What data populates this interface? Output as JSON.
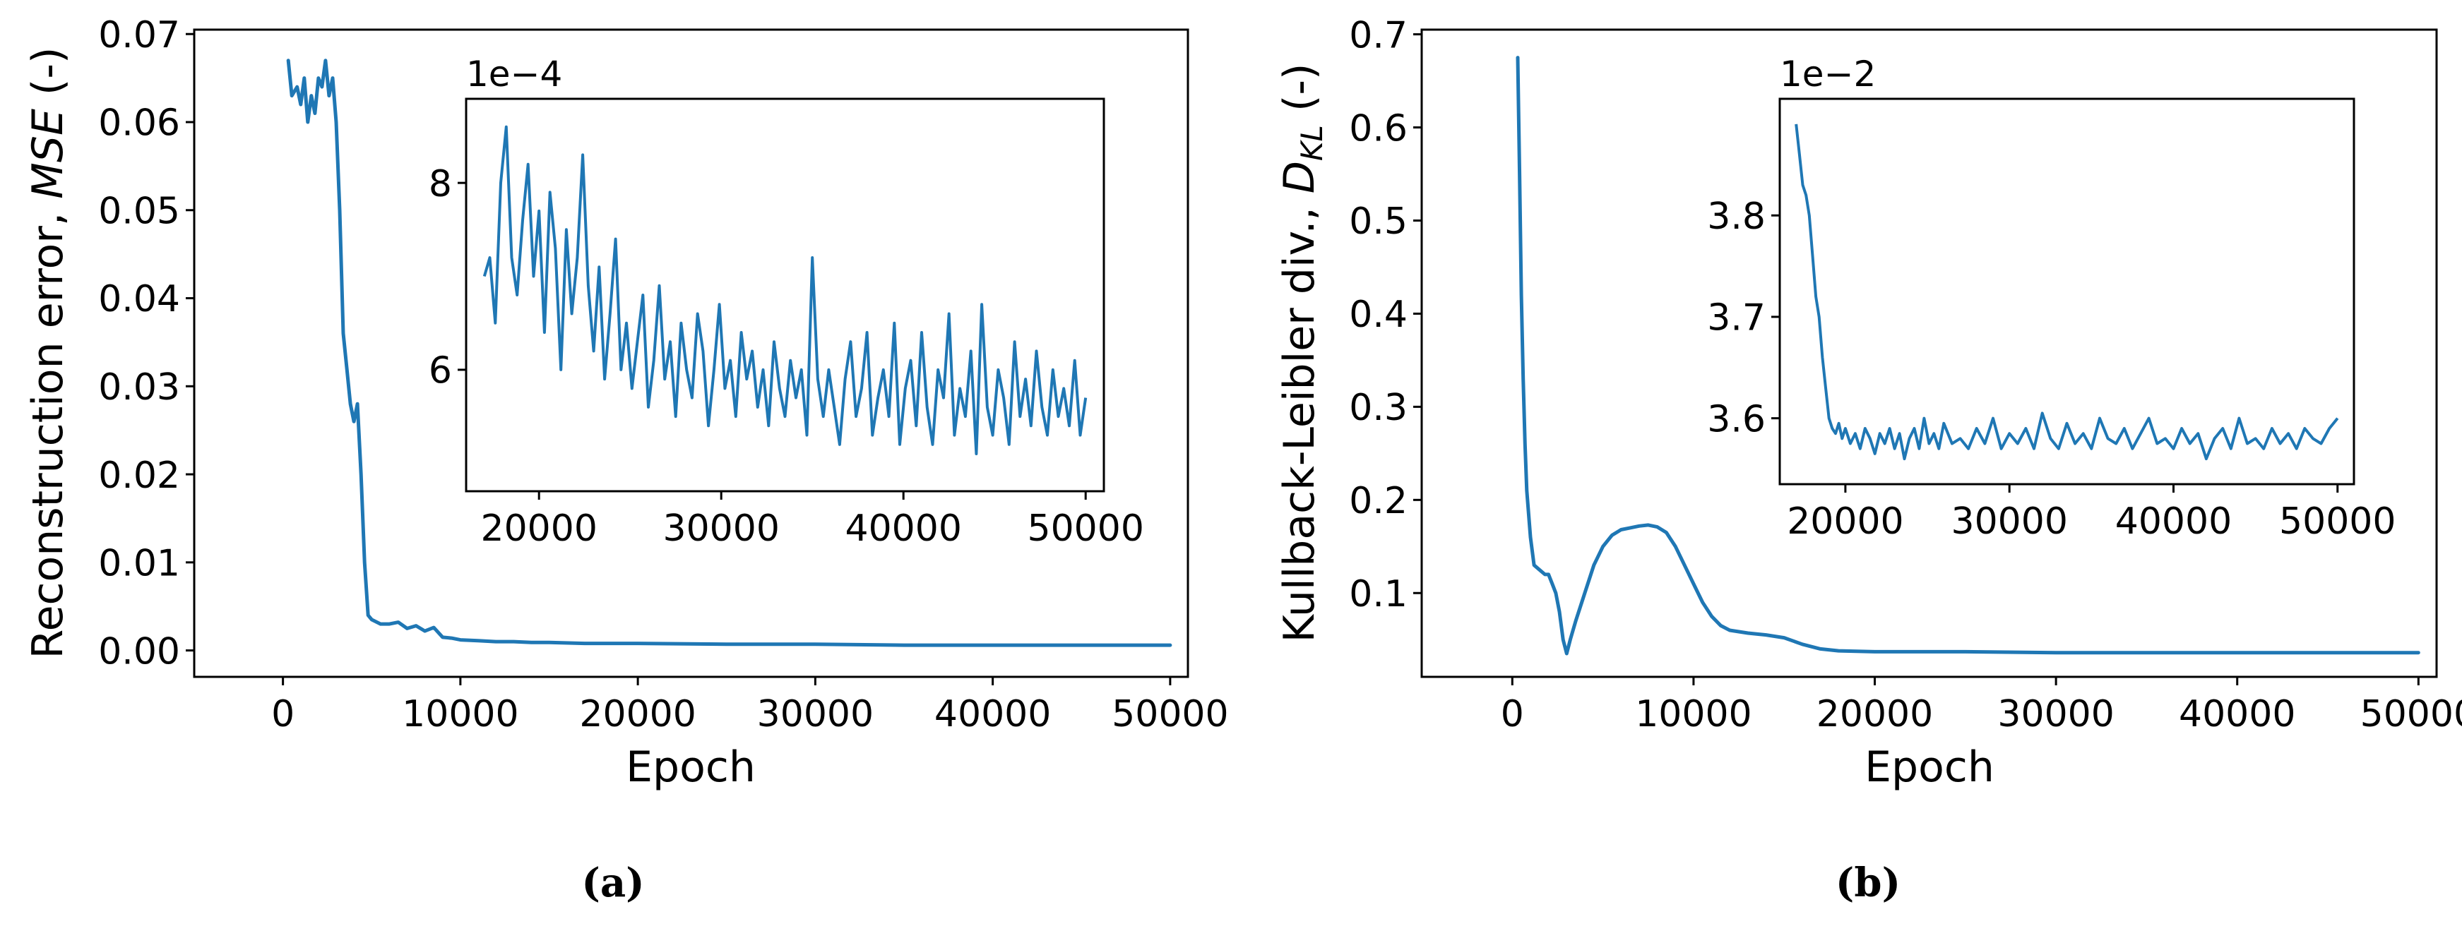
{
  "chart_data": [
    {
      "id": "a",
      "type": "line",
      "caption": "(a)",
      "xlabel": "Epoch",
      "ylabel_text": "Reconstruction error, ",
      "ylabel_italic": "MSE",
      "ylabel_suffix": " (-)",
      "xlim": [
        -5000,
        51000
      ],
      "ylim": [
        -0.003,
        0.0705
      ],
      "xticks": [
        0,
        10000,
        20000,
        30000,
        40000,
        50000
      ],
      "xtick_labels": [
        "0",
        "10000",
        "20000",
        "30000",
        "40000",
        "50000"
      ],
      "yticks": [
        0.0,
        0.01,
        0.02,
        0.03,
        0.04,
        0.05,
        0.06,
        0.07
      ],
      "ytick_labels": [
        "0.00",
        "0.01",
        "0.02",
        "0.03",
        "0.04",
        "0.05",
        "0.06",
        "0.07"
      ],
      "series": [
        {
          "color": "#1f77b4",
          "x": [
            300,
            500,
            800,
            1000,
            1200,
            1400,
            1600,
            1800,
            2000,
            2200,
            2400,
            2600,
            2800,
            3000,
            3200,
            3400,
            3600,
            3800,
            4000,
            4200,
            4400,
            4600,
            4800,
            5000,
            5500,
            6000,
            6500,
            7000,
            7500,
            8000,
            8500,
            9000,
            9500,
            10000,
            11000,
            12000,
            13000,
            14000,
            15000,
            17000,
            20000,
            25000,
            30000,
            35000,
            40000,
            45000,
            50000
          ],
          "y": [
            0.067,
            0.063,
            0.064,
            0.062,
            0.065,
            0.06,
            0.063,
            0.061,
            0.065,
            0.064,
            0.067,
            0.063,
            0.065,
            0.06,
            0.05,
            0.036,
            0.032,
            0.028,
            0.026,
            0.028,
            0.02,
            0.01,
            0.004,
            0.0035,
            0.003,
            0.003,
            0.0032,
            0.0025,
            0.0028,
            0.0022,
            0.0026,
            0.0015,
            0.0014,
            0.0012,
            0.0011,
            0.001,
            0.001,
            0.0009,
            0.0009,
            0.0008,
            0.0008,
            0.0007,
            0.0007,
            0.0006,
            0.0006,
            0.0006,
            0.0006
          ]
        }
      ],
      "inset": {
        "multiplier": "1e−4",
        "xlim": [
          16000,
          51000
        ],
        "ylim": [
          4.7,
          8.9
        ],
        "xticks": [
          20000,
          30000,
          40000,
          50000
        ],
        "xtick_labels": [
          "20000",
          "30000",
          "40000",
          "50000"
        ],
        "yticks": [
          6,
          8
        ],
        "ytick_labels": [
          "6",
          "8"
        ],
        "x": [
          17000,
          17300,
          17600,
          17900,
          18200,
          18500,
          18800,
          19100,
          19400,
          19700,
          20000,
          20300,
          20600,
          20900,
          21200,
          21500,
          21800,
          22100,
          22400,
          22700,
          23000,
          23300,
          23600,
          23900,
          24200,
          24500,
          24800,
          25100,
          25400,
          25700,
          26000,
          26300,
          26600,
          26900,
          27200,
          27500,
          27800,
          28100,
          28400,
          28700,
          29000,
          29300,
          29600,
          29900,
          30200,
          30500,
          30800,
          31100,
          31400,
          31700,
          32000,
          32300,
          32600,
          32900,
          33200,
          33500,
          33800,
          34100,
          34400,
          34700,
          35000,
          35300,
          35600,
          35900,
          36200,
          36500,
          36800,
          37100,
          37400,
          37700,
          38000,
          38300,
          38600,
          38900,
          39200,
          39500,
          39800,
          40100,
          40400,
          40700,
          41000,
          41300,
          41600,
          41900,
          42200,
          42500,
          42800,
          43100,
          43400,
          43700,
          44000,
          44300,
          44600,
          44900,
          45200,
          45500,
          45800,
          46100,
          46400,
          46700,
          47000,
          47300,
          47600,
          47900,
          48200,
          48500,
          48800,
          49100,
          49400,
          49700,
          50000
        ],
        "y": [
          7.0,
          7.2,
          6.5,
          8.0,
          8.6,
          7.2,
          6.8,
          7.6,
          8.2,
          7.0,
          7.7,
          6.4,
          7.9,
          7.3,
          6.0,
          7.5,
          6.6,
          7.2,
          8.3,
          6.9,
          6.2,
          7.1,
          5.9,
          6.6,
          7.4,
          6.0,
          6.5,
          5.8,
          6.3,
          6.8,
          5.6,
          6.1,
          6.9,
          5.9,
          6.3,
          5.5,
          6.5,
          6.0,
          5.7,
          6.6,
          6.2,
          5.4,
          6.0,
          6.7,
          5.8,
          6.1,
          5.5,
          6.4,
          5.9,
          6.2,
          5.6,
          6.0,
          5.4,
          6.3,
          5.8,
          5.5,
          6.1,
          5.7,
          6.0,
          5.3,
          7.2,
          5.9,
          5.5,
          6.0,
          5.6,
          5.2,
          5.9,
          6.3,
          5.5,
          5.8,
          6.4,
          5.3,
          5.7,
          6.0,
          5.5,
          6.5,
          5.2,
          5.8,
          6.1,
          5.4,
          6.4,
          5.6,
          5.2,
          6.0,
          5.7,
          6.6,
          5.3,
          5.8,
          5.5,
          6.2,
          5.1,
          6.7,
          5.6,
          5.3,
          6.0,
          5.7,
          5.2,
          6.3,
          5.5,
          5.9,
          5.4,
          6.2,
          5.6,
          5.3,
          6.0,
          5.5,
          5.8,
          5.4,
          6.1,
          5.3,
          5.7
        ]
      }
    },
    {
      "id": "b",
      "type": "line",
      "caption": "(b)",
      "xlabel": "Epoch",
      "ylabel_text": "Kullback-Leibler div., ",
      "ylabel_italic": "D",
      "ylabel_sub": "KL",
      "ylabel_suffix": " (-)",
      "xlim": [
        -5000,
        51000
      ],
      "ylim": [
        0.01,
        0.705
      ],
      "xticks": [
        0,
        10000,
        20000,
        30000,
        40000,
        50000
      ],
      "xtick_labels": [
        "0",
        "10000",
        "20000",
        "30000",
        "40000",
        "50000"
      ],
      "yticks": [
        0.1,
        0.2,
        0.3,
        0.4,
        0.5,
        0.6,
        0.7
      ],
      "ytick_labels": [
        "0.1",
        "0.2",
        "0.3",
        "0.4",
        "0.5",
        "0.6",
        "0.7"
      ],
      "series": [
        {
          "color": "#1f77b4",
          "x": [
            300,
            400,
            500,
            600,
            700,
            800,
            1000,
            1200,
            1500,
            1800,
            2000,
            2200,
            2400,
            2600,
            2800,
            3000,
            3200,
            3500,
            4000,
            4500,
            5000,
            5500,
            6000,
            6500,
            7000,
            7500,
            8000,
            8500,
            9000,
            9500,
            10000,
            10500,
            11000,
            11500,
            12000,
            13000,
            14000,
            15000,
            16000,
            17000,
            18000,
            20000,
            25000,
            30000,
            35000,
            40000,
            45000,
            50000
          ],
          "y": [
            0.675,
            0.55,
            0.42,
            0.33,
            0.26,
            0.21,
            0.16,
            0.13,
            0.125,
            0.12,
            0.12,
            0.11,
            0.1,
            0.08,
            0.05,
            0.035,
            0.05,
            0.07,
            0.1,
            0.13,
            0.15,
            0.162,
            0.168,
            0.17,
            0.172,
            0.173,
            0.171,
            0.165,
            0.15,
            0.13,
            0.11,
            0.09,
            0.075,
            0.065,
            0.06,
            0.057,
            0.055,
            0.052,
            0.045,
            0.04,
            0.038,
            0.037,
            0.037,
            0.036,
            0.036,
            0.036,
            0.036,
            0.036
          ]
        }
      ],
      "inset": {
        "multiplier": "1e−2",
        "xlim": [
          16000,
          51000
        ],
        "ylim": [
          3.535,
          3.915
        ],
        "xticks": [
          20000,
          30000,
          40000,
          50000
        ],
        "xtick_labels": [
          "20000",
          "30000",
          "40000",
          "50000"
        ],
        "yticks": [
          3.6,
          3.7,
          3.8
        ],
        "ytick_labels": [
          "3.6",
          "3.7",
          "3.8"
        ],
        "x": [
          17000,
          17200,
          17400,
          17600,
          17800,
          18000,
          18200,
          18400,
          18600,
          18800,
          19000,
          19200,
          19400,
          19600,
          19800,
          20000,
          20300,
          20600,
          20900,
          21200,
          21500,
          21800,
          22100,
          22400,
          22700,
          23000,
          23300,
          23600,
          23900,
          24200,
          24500,
          24800,
          25100,
          25400,
          25700,
          26000,
          26500,
          27000,
          27500,
          28000,
          28500,
          29000,
          29500,
          30000,
          30500,
          31000,
          31500,
          32000,
          32500,
          33000,
          33500,
          34000,
          34500,
          35000,
          35500,
          36000,
          36500,
          37000,
          37500,
          38000,
          38500,
          39000,
          39500,
          40000,
          40500,
          41000,
          41500,
          42000,
          42500,
          43000,
          43500,
          44000,
          44500,
          45000,
          45500,
          46000,
          46500,
          47000,
          47500,
          48000,
          48500,
          49000,
          49500,
          50000
        ],
        "y": [
          3.89,
          3.86,
          3.83,
          3.82,
          3.8,
          3.76,
          3.72,
          3.7,
          3.66,
          3.63,
          3.6,
          3.59,
          3.585,
          3.595,
          3.58,
          3.59,
          3.575,
          3.585,
          3.57,
          3.59,
          3.58,
          3.565,
          3.585,
          3.575,
          3.59,
          3.57,
          3.585,
          3.56,
          3.58,
          3.59,
          3.57,
          3.6,
          3.575,
          3.585,
          3.57,
          3.595,
          3.575,
          3.58,
          3.57,
          3.59,
          3.575,
          3.6,
          3.57,
          3.585,
          3.575,
          3.59,
          3.57,
          3.605,
          3.58,
          3.57,
          3.595,
          3.575,
          3.585,
          3.57,
          3.6,
          3.58,
          3.575,
          3.59,
          3.57,
          3.585,
          3.6,
          3.575,
          3.58,
          3.57,
          3.59,
          3.575,
          3.585,
          3.56,
          3.58,
          3.59,
          3.57,
          3.6,
          3.575,
          3.58,
          3.57,
          3.59,
          3.575,
          3.585,
          3.57,
          3.59,
          3.58,
          3.575,
          3.59,
          3.6
        ]
      }
    }
  ]
}
